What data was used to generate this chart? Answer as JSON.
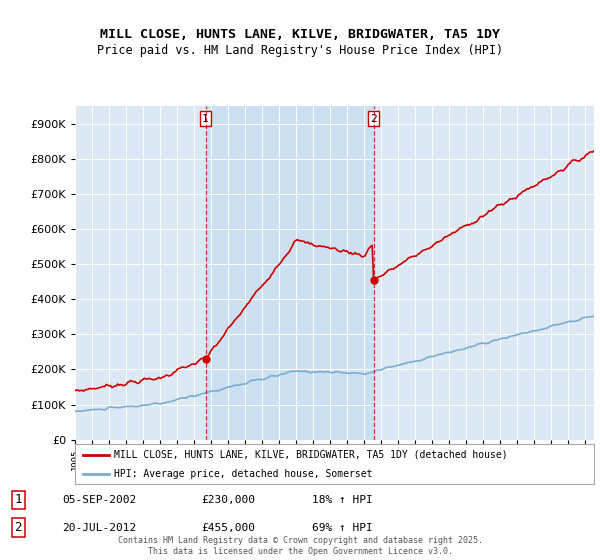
{
  "title": "MILL CLOSE, HUNTS LANE, KILVE, BRIDGWATER, TA5 1DY",
  "subtitle": "Price paid vs. HM Land Registry's House Price Index (HPI)",
  "background_color": "#dce9f5",
  "shade_color": "#c8ddf0",
  "legend_label_red": "MILL CLOSE, HUNTS LANE, KILVE, BRIDGWATER, TA5 1DY (detached house)",
  "legend_label_blue": "HPI: Average price, detached house, Somerset",
  "transaction1_date": "05-SEP-2002",
  "transaction1_price": "£230,000",
  "transaction1_hpi": "18% ↑ HPI",
  "transaction2_date": "20-JUL-2012",
  "transaction2_price": "£455,000",
  "transaction2_hpi": "69% ↑ HPI",
  "footer": "Contains HM Land Registry data © Crown copyright and database right 2025.\nThis data is licensed under the Open Government Licence v3.0.",
  "ylim": [
    0,
    950000
  ],
  "yticks": [
    0,
    100000,
    200000,
    300000,
    400000,
    500000,
    600000,
    700000,
    800000,
    900000
  ],
  "red_color": "#cc0000",
  "blue_color": "#7aadcf",
  "marker1_x": 2002.67,
  "marker1_y": 230000,
  "marker2_x": 2012.55,
  "marker2_y": 455000,
  "vline1_x": 2002.67,
  "vline2_x": 2012.55,
  "xmin": 1995,
  "xmax": 2025.5
}
